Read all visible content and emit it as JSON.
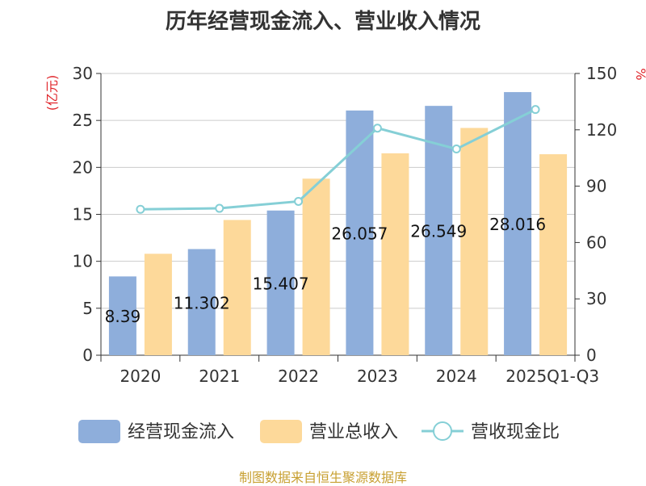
{
  "chart_data": {
    "type": "bar",
    "title": "历年经营现金流入、营业收入情况",
    "categories": [
      "2020",
      "2021",
      "2022",
      "2023",
      "2024",
      "2025Q1-Q3"
    ],
    "series": [
      {
        "name": "经营现金流入",
        "axis": "left",
        "kind": "bar",
        "color": "#8eaedb",
        "values": [
          8.39,
          11.302,
          15.407,
          26.057,
          26.549,
          28.016
        ],
        "labels": [
          "8.39",
          "11.302",
          "15.407",
          "26.057",
          "26.549",
          "28.016"
        ]
      },
      {
        "name": "营业总收入",
        "axis": "left",
        "kind": "bar",
        "color": "#fdd99a",
        "values": [
          10.8,
          14.4,
          18.8,
          21.5,
          24.2,
          21.4
        ]
      },
      {
        "name": "营收现金比",
        "axis": "right",
        "kind": "line",
        "color": "#85cfd6",
        "values": [
          77.7,
          78.2,
          81.9,
          120.9,
          109.8,
          130.8
        ]
      }
    ],
    "y_left": {
      "unit": "(亿元)",
      "min": 0,
      "max": 30,
      "ticks": [
        0,
        5,
        10,
        15,
        20,
        25,
        30
      ]
    },
    "y_right": {
      "unit": "%",
      "min": 0,
      "max": 150,
      "ticks": [
        0,
        30,
        60,
        90,
        120,
        150
      ]
    },
    "grid": true,
    "legend": "bottom"
  },
  "source": "制图数据来自恒生聚源数据库"
}
